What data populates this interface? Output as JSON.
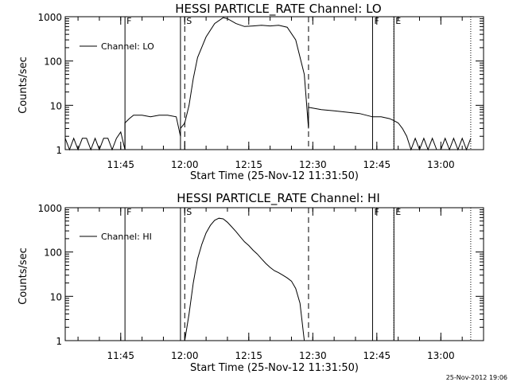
{
  "footer": {
    "stamp": "25-Nov-2012 19:06"
  },
  "chart_data": [
    {
      "type": "line",
      "title": "HESSI PARTICLE_RATE Channel: LO",
      "xlabel": "Start Time (25-Nov-12 11:31:50)",
      "ylabel": "Counts/sec",
      "yscale": "log",
      "xlim": [
        "11:32:00",
        "13:10:00"
      ],
      "ylim": [
        1,
        1000
      ],
      "xticks": [
        "11:45",
        "12:00",
        "12:15",
        "12:30",
        "12:45",
        "13:00"
      ],
      "yticks": [
        "1",
        "10",
        "100",
        "1000"
      ],
      "legend": {
        "position": "top-left",
        "entries": [
          "Channel: LO"
        ]
      },
      "markers": [
        {
          "time": "11:46",
          "style": "solid",
          "label": "F"
        },
        {
          "time": "11:59",
          "style": "solid",
          "label": ""
        },
        {
          "time": "12:00",
          "style": "dashed",
          "label": "S"
        },
        {
          "time": "12:29",
          "style": "dashed",
          "label": ""
        },
        {
          "time": "12:44",
          "style": "solid",
          "label": "F"
        },
        {
          "time": "12:49",
          "style": "solid",
          "label": ""
        },
        {
          "time": "12:49",
          "style": "dotted",
          "label": "E"
        },
        {
          "time": "13:07",
          "style": "dotted",
          "label": ""
        }
      ],
      "series": [
        {
          "x": [
            "11:32",
            "11:33",
            "11:34",
            "11:35",
            "11:36",
            "11:37",
            "11:38",
            "11:39",
            "11:40",
            "11:41",
            "11:42",
            "11:43",
            "11:44",
            "11:45",
            "11:46",
            "11:46",
            "11:47",
            "11:48",
            "11:50",
            "11:52",
            "11:54",
            "11:56",
            "11:58",
            "11:59",
            "11:59",
            "12:00",
            "12:01",
            "12:02",
            "12:03",
            "12:05",
            "12:07",
            "12:09",
            "12:10",
            "12:12",
            "12:14",
            "12:16",
            "12:18",
            "12:20",
            "12:22",
            "12:24",
            "12:26",
            "12:28",
            "12:29",
            "12:29",
            "12:32",
            "12:35",
            "12:38",
            "12:41",
            "12:44",
            "12:46",
            "12:48",
            "12:49",
            "12:50",
            "12:51",
            "12:52",
            "12:53",
            "12:54",
            "12:55",
            "12:56",
            "12:57",
            "12:58",
            "12:59",
            "13:00",
            "13:01",
            "13:02",
            "13:03",
            "13:04",
            "13:05",
            "13:06",
            "13:07"
          ],
          "y": [
            1.8,
            1,
            1.8,
            1,
            1.8,
            1.8,
            1,
            1.8,
            1,
            1.8,
            1.8,
            1,
            1.8,
            2.5,
            1,
            4,
            5,
            6,
            6,
            5.5,
            6,
            6,
            5.5,
            2,
            3,
            4,
            10,
            40,
            120,
            350,
            700,
            950,
            900,
            700,
            600,
            620,
            640,
            620,
            640,
            580,
            300,
            50,
            3,
            9,
            8,
            7.5,
            7,
            6.5,
            5.5,
            5.5,
            5,
            4.5,
            4,
            3,
            2,
            1,
            1.8,
            1,
            1.8,
            1,
            1.8,
            1,
            1,
            1.8,
            1,
            1.8,
            1,
            1.8,
            1,
            1.8
          ]
        }
      ]
    },
    {
      "type": "line",
      "title": "HESSI PARTICLE_RATE Channel: HI",
      "xlabel": "Start Time (25-Nov-12 11:31:50)",
      "ylabel": "Counts/sec",
      "yscale": "log",
      "xlim": [
        "11:32:00",
        "13:10:00"
      ],
      "ylim": [
        1,
        1000
      ],
      "xticks": [
        "11:45",
        "12:00",
        "12:15",
        "12:30",
        "12:45",
        "13:00"
      ],
      "yticks": [
        "1",
        "10",
        "100",
        "1000"
      ],
      "legend": {
        "position": "top-left",
        "entries": [
          "Channel: HI"
        ]
      },
      "markers": [
        {
          "time": "11:46",
          "style": "solid",
          "label": "F"
        },
        {
          "time": "11:59",
          "style": "solid",
          "label": ""
        },
        {
          "time": "12:00",
          "style": "dashed",
          "label": "S"
        },
        {
          "time": "12:29",
          "style": "dashed",
          "label": ""
        },
        {
          "time": "12:44",
          "style": "solid",
          "label": "F"
        },
        {
          "time": "12:49",
          "style": "solid",
          "label": ""
        },
        {
          "time": "12:49",
          "style": "dotted",
          "label": "E"
        },
        {
          "time": "13:07",
          "style": "dotted",
          "label": ""
        }
      ],
      "series": [
        {
          "x": [
            "12:00",
            "12:01",
            "12:02",
            "12:03",
            "12:04",
            "12:05",
            "12:06",
            "12:07",
            "12:08",
            "12:09",
            "12:10",
            "12:11",
            "12:12",
            "12:13",
            "12:14",
            "12:15",
            "12:16",
            "12:17",
            "12:18",
            "12:19",
            "12:20",
            "12:21",
            "12:22",
            "12:23",
            "12:24",
            "12:25",
            "12:26",
            "12:27",
            "12:28"
          ],
          "y": [
            1,
            4,
            20,
            70,
            150,
            270,
            400,
            520,
            580,
            560,
            470,
            370,
            290,
            220,
            170,
            140,
            110,
            90,
            70,
            55,
            45,
            38,
            34,
            30,
            26,
            22,
            15,
            7,
            1
          ]
        }
      ]
    }
  ]
}
